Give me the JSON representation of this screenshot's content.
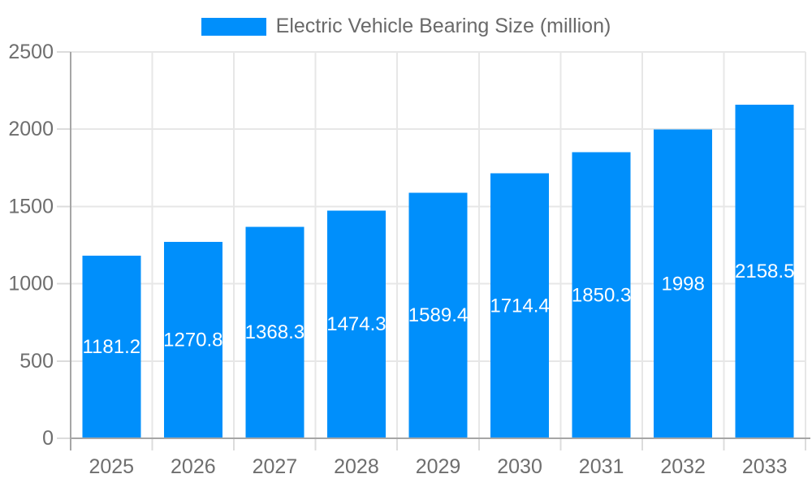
{
  "legend": {
    "position": "top",
    "label": "Electric Vehicle Bearing Size (million)"
  },
  "chart_data": {
    "type": "bar",
    "title": "Electric Vehicle Bearing Size (million)",
    "series_name": "Electric Vehicle Bearing Size (million)",
    "categories": [
      "2025",
      "2026",
      "2027",
      "2028",
      "2029",
      "2030",
      "2031",
      "2032",
      "2033"
    ],
    "values": [
      1181.2,
      1270.8,
      1368.3,
      1474.3,
      1589.4,
      1714.4,
      1850.3,
      1998,
      2158.5
    ],
    "value_labels": [
      "1181.2",
      "1270.8",
      "1368.3",
      "1474.3",
      "1589.4",
      "1714.4",
      "1850.3",
      "1998",
      "2158.5"
    ],
    "xlabel": "",
    "ylabel": "",
    "ylim": [
      0,
      2500
    ],
    "ytick_step": 500,
    "yticks": [
      0,
      500,
      1000,
      1500,
      2000,
      2500
    ],
    "ytick_labels": [
      "0",
      "500",
      "1000",
      "1500",
      "2000",
      "2500"
    ],
    "grid": true,
    "legend_position": "top",
    "colors": {
      "bar": "#008FFB",
      "data_label_text": "#ffffff",
      "axis_text": "#6e6e6e",
      "legend_text": "#696969",
      "grid_line": "#e7e7e7",
      "tick_line": "#dcdcdc",
      "axis_line": "#a6a6a6",
      "background": "#ffffff"
    }
  }
}
